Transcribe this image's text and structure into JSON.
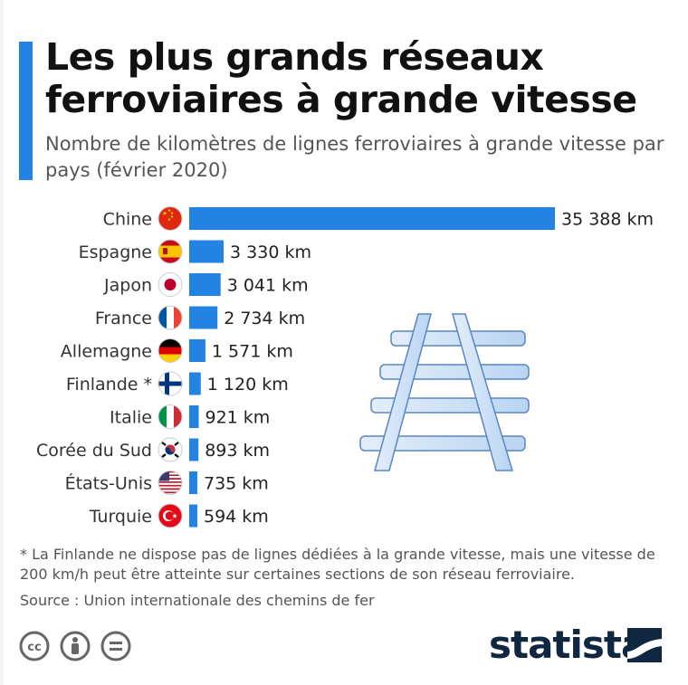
{
  "header": {
    "title": "Les plus grands réseaux ferroviaires à grande vitesse",
    "subtitle": "Nombre de kilomètres de lignes ferroviaires à grande vitesse par pays (février 2020)"
  },
  "chart_data": {
    "type": "bar",
    "orientation": "horizontal",
    "title": "Les plus grands réseaux ferroviaires à grande vitesse",
    "subtitle": "Nombre de kilomètres de lignes ferroviaires à grande vitesse par pays (février 2020)",
    "categories": [
      "Chine",
      "Espagne",
      "Japon",
      "France",
      "Allemagne",
      "Finlande *",
      "Italie",
      "Corée du Sud",
      "États-Unis",
      "Turquie"
    ],
    "values": [
      35388,
      3330,
      3041,
      2734,
      1571,
      1120,
      921,
      893,
      735,
      594
    ],
    "value_labels": [
      "35 388 km",
      "3 330 km",
      "3 041 km",
      "2 734 km",
      "1 571 km",
      "1 120 km",
      "921 km",
      "893 km",
      "735 km",
      "594 km"
    ],
    "flags": [
      "flag-china-icon",
      "flag-spain-icon",
      "flag-japan-icon",
      "flag-france-icon",
      "flag-germany-icon",
      "flag-finland-icon",
      "flag-italy-icon",
      "flag-south-korea-icon",
      "flag-usa-icon",
      "flag-turkey-icon"
    ],
    "unit": "km",
    "xlim": [
      0,
      35388
    ],
    "grid": false,
    "legend": "none",
    "bar_color": "#2383e2"
  },
  "colors": {
    "accent": "#2383e2",
    "title": "#111111",
    "text": "#555555",
    "brand": "#0f2740",
    "illustration": "#cfe2f7"
  },
  "illustration": "railway-track-icon",
  "footer": {
    "note": "* La Finlande ne dispose pas de lignes dédiées à la grande vitesse, mais une vitesse de 200 km/h peut être atteinte sur certaines sections de son réseau ferroviaire.",
    "source": "Source : Union internationale des chemins de fer",
    "license_icons": [
      "cc-icon",
      "attribution-icon",
      "no-derivatives-icon"
    ],
    "brand": "statista"
  }
}
